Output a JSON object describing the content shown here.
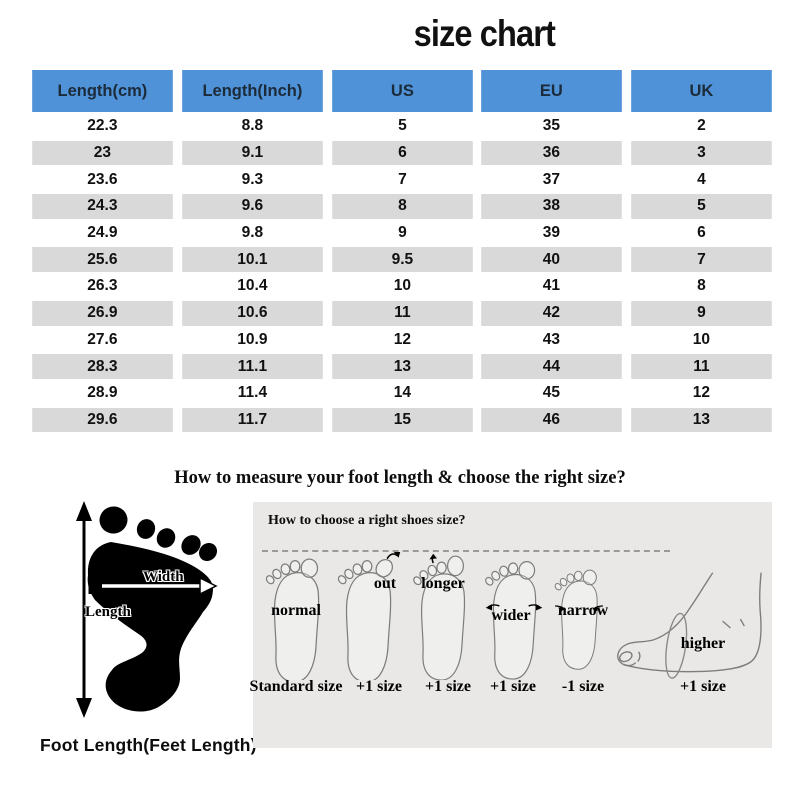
{
  "title": "size chart",
  "colors": {
    "header_bg": "#4f92d8",
    "row_alt_bg": "#d9d9d9",
    "panel_bg": "#e9e8e6"
  },
  "table": {
    "headers": [
      "Length(cm)",
      "Length(Inch)",
      "US",
      "EU",
      "UK"
    ],
    "rows": [
      [
        "22.3",
        "8.8",
        "5",
        "35",
        "2"
      ],
      [
        "23",
        "9.1",
        "6",
        "36",
        "3"
      ],
      [
        "23.6",
        "9.3",
        "7",
        "37",
        "4"
      ],
      [
        "24.3",
        "9.6",
        "8",
        "38",
        "5"
      ],
      [
        "24.9",
        "9.8",
        "9",
        "39",
        "6"
      ],
      [
        "25.6",
        "10.1",
        "9.5",
        "40",
        "7"
      ],
      [
        "26.3",
        "10.4",
        "10",
        "41",
        "8"
      ],
      [
        "26.9",
        "10.6",
        "11",
        "42",
        "9"
      ],
      [
        "27.6",
        "10.9",
        "12",
        "43",
        "10"
      ],
      [
        "28.3",
        "11.1",
        "13",
        "44",
        "11"
      ],
      [
        "28.9",
        "11.4",
        "14",
        "45",
        "12"
      ],
      [
        "29.6",
        "11.7",
        "15",
        "46",
        "13"
      ]
    ]
  },
  "measure_section": {
    "heading": "How to measure your foot length & choose the right size?",
    "foot_diagram": {
      "width_label": "Width",
      "length_label": "Length",
      "caption": "Foot Length(Feet Length)"
    },
    "panel": {
      "heading": "How to choose a right shoes size?",
      "feet": [
        {
          "label": "normal",
          "size_label": "Standard size"
        },
        {
          "label": "out",
          "size_label": "+1 size"
        },
        {
          "label": "longer",
          "size_label": "+1 size"
        },
        {
          "label": "wider",
          "size_label": "+1 size"
        },
        {
          "label": "narrow",
          "size_label": "-1 size"
        },
        {
          "label": "higher",
          "size_label": "+1 size"
        }
      ]
    }
  }
}
